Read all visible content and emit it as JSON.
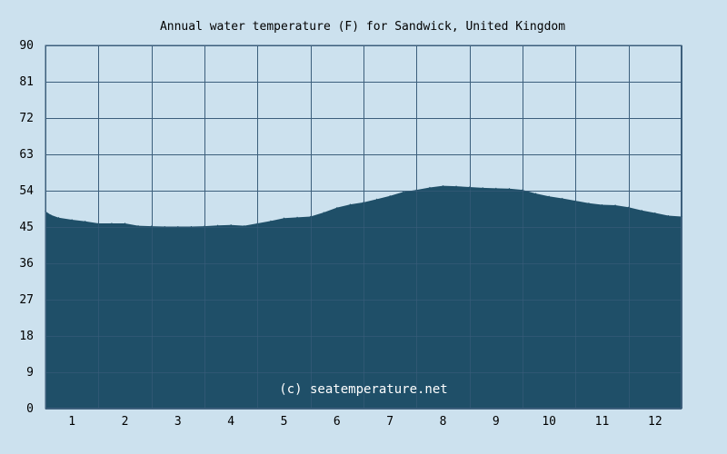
{
  "chart_data": {
    "type": "area",
    "title": "Annual water temperature (F) for Sandwick, United Kingdom",
    "xlabel": "",
    "ylabel": "",
    "categories": [
      "1",
      "2",
      "3",
      "4",
      "5",
      "6",
      "7",
      "8",
      "9",
      "10",
      "11",
      "12"
    ],
    "xlim": [
      0.5,
      12.5
    ],
    "ylim": [
      0,
      90
    ],
    "yticks": [
      0,
      9,
      18,
      27,
      36,
      45,
      54,
      63,
      72,
      81,
      90
    ],
    "grid": true,
    "legend": "none",
    "series": [
      {
        "x": [
          0.5,
          0.6,
          0.75,
          1.0,
          1.25,
          1.5,
          1.75,
          2.0,
          2.25,
          2.5,
          2.75,
          3.0,
          3.25,
          3.5,
          3.75,
          4.0,
          4.25,
          4.5,
          4.75,
          5.0,
          5.25,
          5.5,
          5.75,
          6.0,
          6.25,
          6.5,
          6.75,
          7.0,
          7.25,
          7.5,
          7.75,
          8.0,
          8.25,
          8.5,
          8.75,
          9.0,
          9.25,
          9.5,
          9.75,
          10.0,
          10.25,
          10.5,
          10.75,
          11.0,
          11.25,
          11.5,
          11.75,
          12.0,
          12.25,
          12.5
        ],
        "values": [
          48.9,
          48.0,
          47.3,
          46.8,
          46.4,
          45.9,
          45.9,
          45.9,
          45.3,
          45.2,
          45.1,
          45.1,
          45.1,
          45.2,
          45.4,
          45.5,
          45.3,
          45.9,
          46.5,
          47.2,
          47.4,
          47.6,
          48.6,
          49.8,
          50.6,
          51.1,
          51.9,
          52.7,
          53.7,
          54.2,
          54.8,
          55.2,
          55.1,
          54.9,
          54.7,
          54.6,
          54.5,
          54.2,
          53.3,
          52.6,
          52.1,
          51.5,
          50.9,
          50.5,
          50.4,
          49.9,
          49.1,
          48.5,
          47.8,
          47.6
        ]
      }
    ],
    "colors": {
      "background": "#cce1ee",
      "fill": "#1f4f68",
      "grid": "#3d5f7c",
      "text": "#000000",
      "watermark": "#ffffff"
    }
  },
  "watermark": "(c) seatemperature.net"
}
